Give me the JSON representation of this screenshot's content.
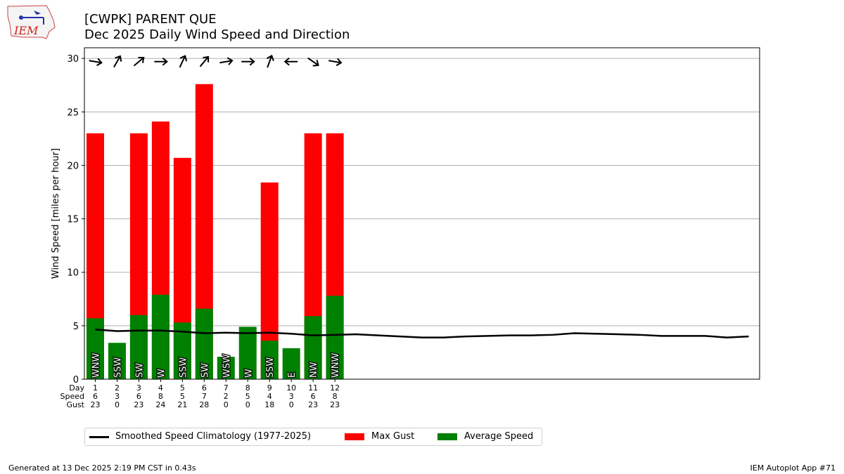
{
  "header": {
    "title_line1": "[CWPK] PARENT  QUE",
    "title_line2": "Dec 2025 Daily Wind Speed and Direction"
  },
  "logo": {
    "text": "IEM"
  },
  "footer": {
    "left": "Generated at 13 Dec 2025 2:19 PM CST in 0.43s",
    "right": "IEM Autoplot App #71"
  },
  "legend": {
    "climatology": "Smoothed Speed Climatology (1977-2025)",
    "gust": "Max Gust",
    "avg": "Average Speed"
  },
  "colors": {
    "gust": "#ff0000",
    "avg": "#008000",
    "climatology": "#000000",
    "grid": "#b0b0b0"
  },
  "chart_data": {
    "type": "bar",
    "title": "[CWPK] PARENT  QUE",
    "subtitle": "Dec 2025 Daily Wind Speed and Direction",
    "ylabel": "Wind Speed [miles per hour]",
    "ylim": [
      0,
      31
    ],
    "xlim": [
      0.5,
      31.5
    ],
    "yticks": [
      0,
      5,
      10,
      15,
      20,
      25,
      30
    ],
    "grid": "horizontal",
    "legend_placement": "bottom-left, below plot",
    "row_labels": [
      "Day",
      "Speed",
      "Gust"
    ],
    "days": [
      1,
      2,
      3,
      4,
      5,
      6,
      7,
      8,
      9,
      10,
      11,
      12
    ],
    "speed_labels": [
      "6",
      "3",
      "6",
      "8",
      "5",
      "7",
      "2",
      "5",
      "4",
      "3",
      "6",
      "8"
    ],
    "gust_labels": [
      "23",
      "0",
      "23",
      "24",
      "21",
      "28",
      "0",
      "0",
      "18",
      "0",
      "23",
      "23"
    ],
    "avg_speed": [
      5.7,
      3.4,
      6.0,
      7.9,
      5.3,
      6.6,
      2.1,
      4.9,
      3.6,
      2.9,
      5.9,
      7.8
    ],
    "max_gust": [
      23.0,
      0,
      23.0,
      24.1,
      20.7,
      27.6,
      0,
      0,
      18.4,
      0,
      23.0,
      23.0
    ],
    "direction_labels": [
      "WNW",
      "SSW",
      "SW",
      "W",
      "SSW",
      "SW",
      "WSW",
      "W",
      "SSW",
      "E",
      "NW",
      "WNW"
    ],
    "arrow_rotation_deg": [
      10,
      -60,
      -40,
      0,
      -65,
      -50,
      -10,
      0,
      -70,
      180,
      35,
      10
    ],
    "climatology": {
      "name": "Smoothed Speed Climatology (1977-2025)",
      "x": [
        1,
        2,
        3,
        4,
        5,
        6,
        7,
        8,
        9,
        10,
        11,
        12,
        13,
        14,
        15,
        16,
        17,
        18,
        19,
        20,
        21,
        22,
        23,
        24,
        25,
        26,
        27,
        28,
        29,
        30,
        31
      ],
      "y": [
        4.65,
        4.5,
        4.55,
        4.55,
        4.45,
        4.3,
        4.35,
        4.3,
        4.35,
        4.25,
        4.1,
        4.15,
        4.2,
        4.1,
        4.0,
        3.9,
        3.9,
        4.0,
        4.05,
        4.1,
        4.1,
        4.15,
        4.3,
        4.25,
        4.2,
        4.15,
        4.05,
        4.05,
        4.05,
        3.9,
        4.0
      ]
    }
  }
}
